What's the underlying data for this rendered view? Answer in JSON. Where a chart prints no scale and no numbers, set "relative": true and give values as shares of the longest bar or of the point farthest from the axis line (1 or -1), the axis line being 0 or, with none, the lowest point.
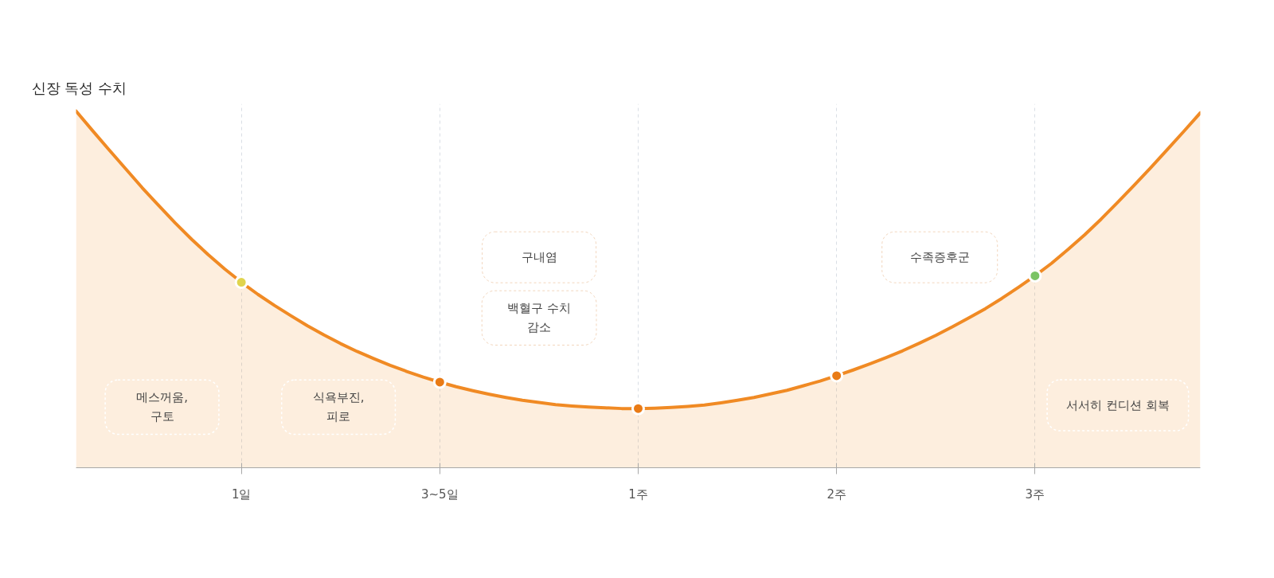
{
  "chart_data": {
    "type": "area",
    "ylabel": "신장 독성 수치",
    "categories": [
      null,
      null,
      null,
      null,
      null,
      null,
      null,
      null,
      null,
      null,
      "1일",
      null,
      null,
      null,
      null,
      null,
      null,
      null,
      null,
      null,
      null,
      null,
      "3~5일",
      null,
      null,
      null,
      null,
      null,
      null,
      null,
      null,
      null,
      null,
      null,
      "1주",
      null,
      null,
      null,
      null,
      null,
      null,
      null,
      null,
      null,
      null,
      null,
      "2주",
      null,
      null,
      null,
      null,
      null,
      null,
      null,
      null,
      null,
      null,
      null,
      "3주",
      null,
      null,
      null,
      null,
      null,
      null,
      null,
      null,
      null,
      null
    ],
    "series": [
      {
        "color": "#f08a24",
        "values": [
          1,
          0.945,
          0.891,
          0.838,
          0.785,
          0.735,
          0.686,
          0.64,
          0.597,
          0.557,
          0.52,
          0.486,
          0.455,
          0.426,
          0.398,
          0.372,
          0.348,
          0.326,
          0.306,
          0.287,
          0.27,
          0.254,
          0.24,
          0.227,
          0.216,
          0.206,
          0.197,
          0.189,
          0.183,
          0.177,
          0.173,
          0.17,
          0.168,
          0.166,
          0.166,
          0.167,
          0.169,
          0.172,
          0.176,
          0.182,
          0.189,
          0.197,
          0.207,
          0.217,
          0.23,
          0.243,
          0.258,
          0.274,
          0.291,
          0.309,
          0.328,
          0.349,
          0.371,
          0.395,
          0.42,
          0.446,
          0.475,
          0.506,
          0.538,
          0.573,
          0.612,
          0.653,
          0.697,
          0.744,
          0.792,
          0.841,
          0.892,
          0.943,
          0.995
        ]
      },
      {
        "type": "scatter",
        "marker": "circle",
        "x": [
          "1일",
          "3~5일",
          "1주",
          "2주",
          "3주"
        ],
        "values": [
          0.52,
          0.24,
          0.166,
          0.258,
          0.538
        ],
        "colors": [
          "#e0d44e",
          "#e97b16",
          "#e97b16",
          "#e97b16",
          "#7cc465"
        ]
      }
    ],
    "grid": "x",
    "relative": true,
    "annotations": [
      "메스꺼움,\n구토",
      "식욕부진,\n피로",
      "구내염",
      "백혈구 수치\n감소",
      "수족증후군",
      "서서히 컨디션 회복"
    ]
  }
}
